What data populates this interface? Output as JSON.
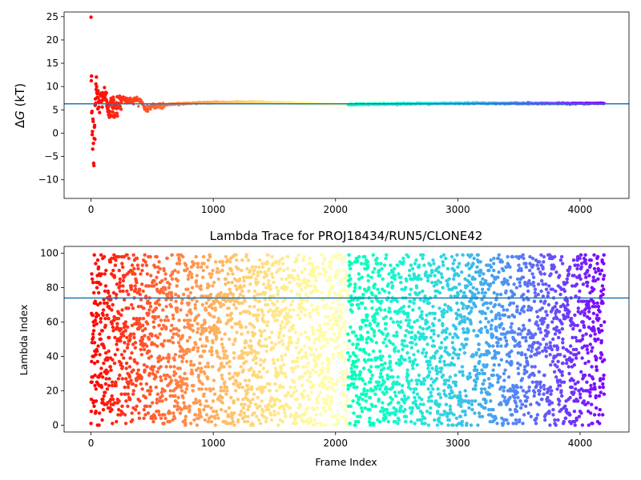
{
  "chart_data": [
    {
      "type": "scatter",
      "title": "",
      "xlabel": "",
      "ylabel": "ΔG (kT)",
      "ylabel_parts": {
        "delta": "Δ",
        "var": "G",
        "unit": " (kT)"
      },
      "xlim": [
        -220,
        4400
      ],
      "ylim": [
        -14,
        26
      ],
      "xticks": [
        0,
        1000,
        2000,
        3000,
        4000
      ],
      "xtick_labels": [
        "0",
        "1000",
        "2000",
        "3000",
        "4000"
      ],
      "yticks": [
        -10,
        -5,
        0,
        5,
        10,
        15,
        20,
        25
      ],
      "ytick_labels": [
        "−10",
        "−5",
        "0",
        "5",
        "10",
        "15",
        "20",
        "25"
      ],
      "grid": false,
      "colormap": "rainbow_r (red at frame 0 → violet at last frame)",
      "hline": {
        "y": 6.3,
        "color": "#1f77b4"
      },
      "n_frames": 4200,
      "series_trend": [
        {
          "x": 0,
          "y": 16.0
        },
        {
          "x": 5,
          "y": 10.0
        },
        {
          "x": 10,
          "y": 0.0
        },
        {
          "x": 20,
          "y": -2.0
        },
        {
          "x": 30,
          "y": -3.2
        },
        {
          "x": 40,
          "y": 11.5
        },
        {
          "x": 60,
          "y": 6.0
        },
        {
          "x": 100,
          "y": 8.5
        },
        {
          "x": 150,
          "y": 5.5
        },
        {
          "x": 200,
          "y": 5.5
        },
        {
          "x": 250,
          "y": 7.5
        },
        {
          "x": 300,
          "y": 7.0
        },
        {
          "x": 400,
          "y": 7.2
        },
        {
          "x": 450,
          "y": 5.0
        },
        {
          "x": 500,
          "y": 5.8
        },
        {
          "x": 700,
          "y": 6.3
        },
        {
          "x": 1000,
          "y": 6.6
        },
        {
          "x": 1300,
          "y": 6.7
        },
        {
          "x": 1600,
          "y": 6.5
        },
        {
          "x": 2000,
          "y": 6.1
        },
        {
          "x": 2500,
          "y": 6.3
        },
        {
          "x": 3000,
          "y": 6.4
        },
        {
          "x": 4200,
          "y": 6.4
        }
      ]
    },
    {
      "type": "scatter",
      "title": "Lambda Trace for PROJ18434/RUN5/CLONE42",
      "xlabel": "Frame Index",
      "ylabel": "Lambda Index",
      "xlim": [
        -220,
        4400
      ],
      "ylim": [
        -4,
        104
      ],
      "xticks": [
        0,
        1000,
        2000,
        3000,
        4000
      ],
      "xtick_labels": [
        "0",
        "1000",
        "2000",
        "3000",
        "4000"
      ],
      "yticks": [
        0,
        20,
        40,
        60,
        80,
        100
      ],
      "ytick_labels": [
        "0",
        "20",
        "40",
        "60",
        "80",
        "100"
      ],
      "grid": false,
      "colormap": "rainbow_r (red at frame 0 → violet at last frame)",
      "hline": {
        "y": 74,
        "color": "#1f77b4"
      },
      "n_frames": 4200,
      "lambda_range": [
        0,
        99
      ],
      "distribution": "points spread roughly uniformly over lambda 0–99 across all frames"
    }
  ]
}
